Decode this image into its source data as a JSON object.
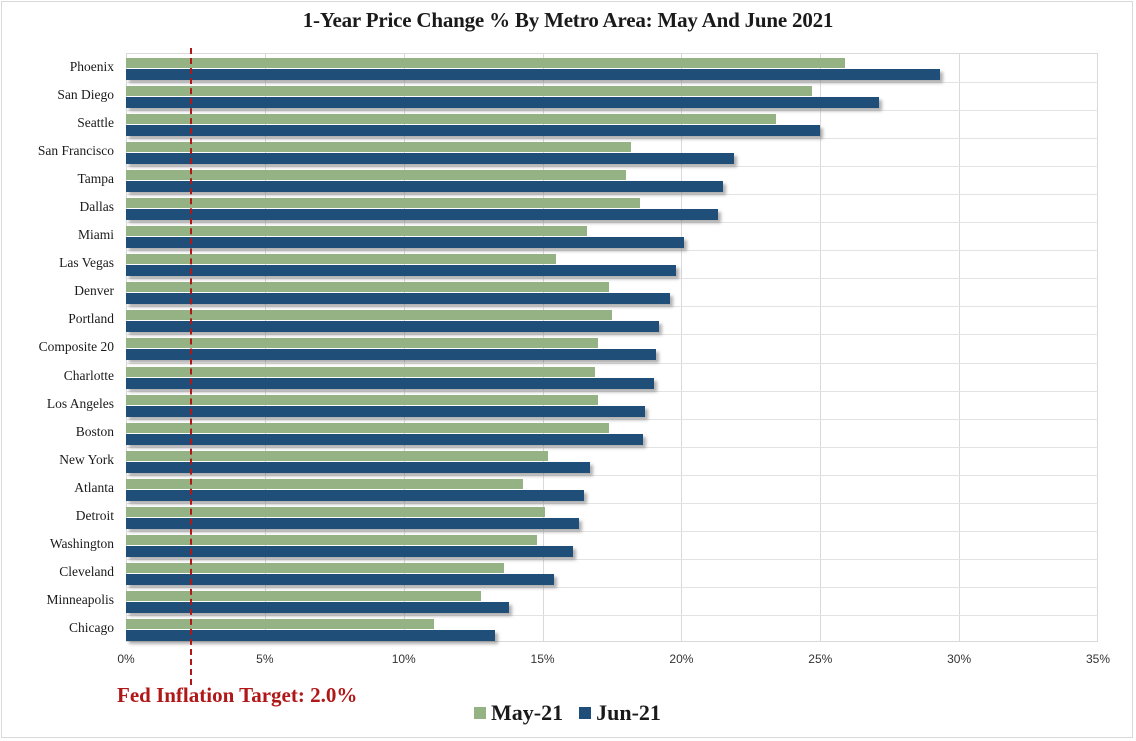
{
  "chart_data": {
    "type": "bar",
    "orientation": "horizontal",
    "title": "1-Year Price Change % By Metro Area: May And June 2021",
    "xlabel": "",
    "ylabel": "",
    "xlim": [
      0,
      35
    ],
    "x_ticks": [
      "0%",
      "5%",
      "10%",
      "15%",
      "20%",
      "25%",
      "30%",
      "35%"
    ],
    "grid": true,
    "legend_position": "bottom",
    "categories": [
      "Phoenix",
      "San Diego",
      "Seattle",
      "San Francisco",
      "Tampa",
      "Dallas",
      "Miami",
      "Las Vegas",
      "Denver",
      "Portland",
      "Composite 20",
      "Charlotte",
      "Los Angeles",
      "Boston",
      "New York",
      "Atlanta",
      "Detroit",
      "Washington",
      "Cleveland",
      "Minneapolis",
      "Chicago"
    ],
    "series": [
      {
        "name": "May-21",
        "color": "#94b283",
        "values": [
          25.9,
          24.7,
          23.4,
          18.2,
          18.0,
          18.5,
          16.6,
          15.5,
          17.4,
          17.5,
          17.0,
          16.9,
          17.0,
          17.4,
          15.2,
          14.3,
          15.1,
          14.8,
          13.6,
          12.8,
          11.1
        ]
      },
      {
        "name": "Jun-21",
        "color": "#1f4e79",
        "values": [
          29.3,
          27.1,
          25.0,
          21.9,
          21.5,
          21.3,
          20.1,
          19.8,
          19.6,
          19.2,
          19.1,
          19.0,
          18.7,
          18.6,
          16.7,
          16.5,
          16.3,
          16.1,
          15.4,
          13.8,
          13.3
        ]
      }
    ],
    "annotations": [
      {
        "type": "vline",
        "x": 2.0,
        "style": "dashed",
        "color": "#b01818",
        "label": "Fed Inflation Target: 2.0%"
      }
    ]
  },
  "labels": {
    "title": "1-Year Price Change % By Metro Area: May And June 2021",
    "target": "Fed Inflation Target: 2.0%",
    "legend_may": "May-21",
    "legend_jun": "Jun-21"
  }
}
